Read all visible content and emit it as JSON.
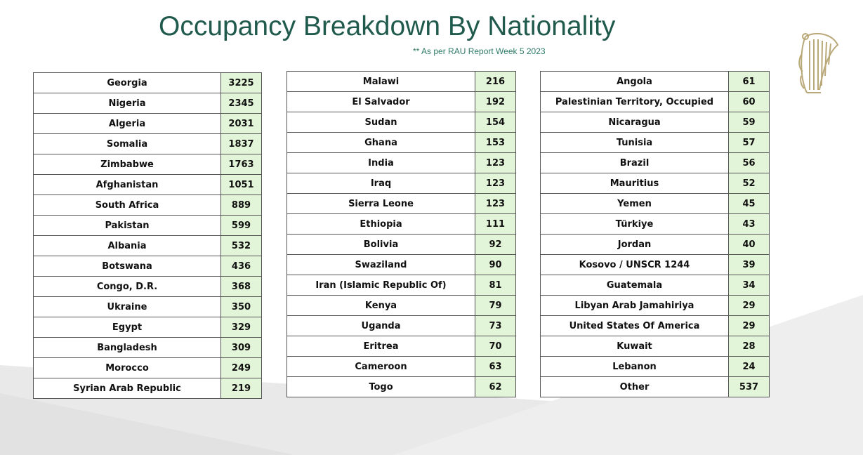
{
  "header": {
    "title": "Occupancy Breakdown By Nationality",
    "subtitle": "** As per RAU Report Week 5 2023"
  },
  "colors": {
    "title": "#1f5a4c",
    "value_cell_background": "#e3f5d8",
    "harp_gold": "#b9a878"
  },
  "icons": {
    "emblem": "harp-icon"
  },
  "tables": [
    {
      "rows": [
        {
          "country": "Georgia",
          "count": "3225"
        },
        {
          "country": "Nigeria",
          "count": "2345"
        },
        {
          "country": "Algeria",
          "count": "2031"
        },
        {
          "country": "Somalia",
          "count": "1837"
        },
        {
          "country": "Zimbabwe",
          "count": "1763"
        },
        {
          "country": "Afghanistan",
          "count": "1051"
        },
        {
          "country": "South Africa",
          "count": "889"
        },
        {
          "country": "Pakistan",
          "count": "599"
        },
        {
          "country": "Albania",
          "count": "532"
        },
        {
          "country": "Botswana",
          "count": "436"
        },
        {
          "country": "Congo, D.R.",
          "count": "368"
        },
        {
          "country": "Ukraine",
          "count": "350"
        },
        {
          "country": "Egypt",
          "count": "329"
        },
        {
          "country": "Bangladesh",
          "count": "309"
        },
        {
          "country": "Morocco",
          "count": "249"
        },
        {
          "country": "Syrian Arab Republic",
          "count": "219"
        }
      ]
    },
    {
      "rows": [
        {
          "country": "Malawi",
          "count": "216"
        },
        {
          "country": "El Salvador",
          "count": "192"
        },
        {
          "country": "Sudan",
          "count": "154"
        },
        {
          "country": "Ghana",
          "count": "153"
        },
        {
          "country": "India",
          "count": "123"
        },
        {
          "country": "Iraq",
          "count": "123"
        },
        {
          "country": "Sierra Leone",
          "count": "123"
        },
        {
          "country": "Ethiopia",
          "count": "111"
        },
        {
          "country": "Bolivia",
          "count": "92"
        },
        {
          "country": "Swaziland",
          "count": "90"
        },
        {
          "country": "Iran (Islamic Republic Of)",
          "count": "81"
        },
        {
          "country": "Kenya",
          "count": "79"
        },
        {
          "country": "Uganda",
          "count": "73"
        },
        {
          "country": "Eritrea",
          "count": "70"
        },
        {
          "country": "Cameroon",
          "count": "63"
        },
        {
          "country": "Togo",
          "count": "62"
        }
      ]
    },
    {
      "rows": [
        {
          "country": "Angola",
          "count": "61"
        },
        {
          "country": "Palestinian Territory, Occupied",
          "count": "60"
        },
        {
          "country": "Nicaragua",
          "count": "59"
        },
        {
          "country": "Tunisia",
          "count": "57"
        },
        {
          "country": "Brazil",
          "count": "56"
        },
        {
          "country": "Mauritius",
          "count": "52"
        },
        {
          "country": "Yemen",
          "count": "45"
        },
        {
          "country": "Türkiye",
          "count": "43"
        },
        {
          "country": "Jordan",
          "count": "40"
        },
        {
          "country": "Kosovo / UNSCR 1244",
          "count": "39"
        },
        {
          "country": "Guatemala",
          "count": "34"
        },
        {
          "country": "Libyan Arab Jamahiriya",
          "count": "29"
        },
        {
          "country": "United States Of America",
          "count": "29"
        },
        {
          "country": "Kuwait",
          "count": "28"
        },
        {
          "country": "Lebanon",
          "count": "24"
        },
        {
          "country": "Other",
          "count": "537"
        }
      ]
    }
  ]
}
